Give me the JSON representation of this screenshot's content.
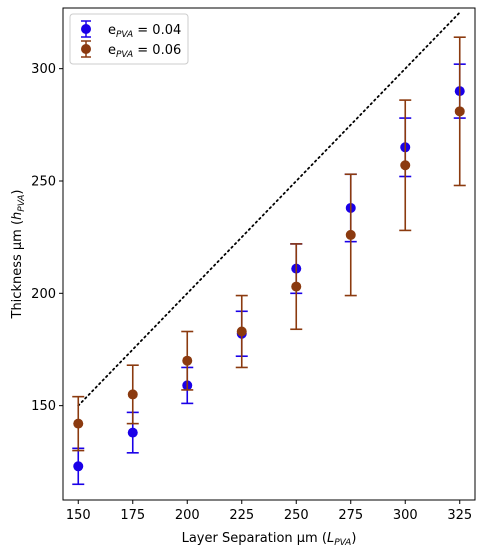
{
  "chart_data": {
    "type": "scatter",
    "xlabel": "Layer Separation μm (",
    "xlabel_sym": "L",
    "xlabel_sub": "PVA",
    "xlabel_close": ")",
    "ylabel": "Thickness μm (",
    "ylabel_sym": "h",
    "ylabel_sub": "PVA",
    "ylabel_close": ")",
    "xlim": [
      143,
      332
    ],
    "ylim": [
      108,
      327
    ],
    "xticks": [
      150,
      175,
      200,
      225,
      250,
      275,
      300,
      325
    ],
    "yticks": [
      150,
      200,
      250,
      300
    ],
    "grid": false,
    "legend_position": "top-left",
    "series": [
      {
        "name_prefix": "e",
        "name_sub": "PVA",
        "name_suffix": " = 0.04",
        "color": "#1a00e8",
        "x": [
          150,
          175,
          200,
          225,
          250,
          275,
          300,
          325
        ],
        "y": [
          123,
          138,
          159,
          182,
          211,
          238,
          265,
          290
        ],
        "err": [
          8,
          9,
          8,
          10,
          11,
          15,
          13,
          12
        ]
      },
      {
        "name_prefix": "e",
        "name_sub": "PVA",
        "name_suffix": " = 0.06",
        "color": "#8b3a0f",
        "x": [
          150,
          175,
          200,
          225,
          250,
          275,
          300,
          325
        ],
        "y": [
          142,
          155,
          170,
          183,
          203,
          226,
          257,
          281
        ],
        "err": [
          12,
          13,
          13,
          16,
          19,
          27,
          29,
          33
        ]
      }
    ],
    "reference_line": {
      "x": [
        150,
        325
      ],
      "y": [
        150,
        325
      ],
      "color": "#000000",
      "style": "dotted"
    }
  }
}
